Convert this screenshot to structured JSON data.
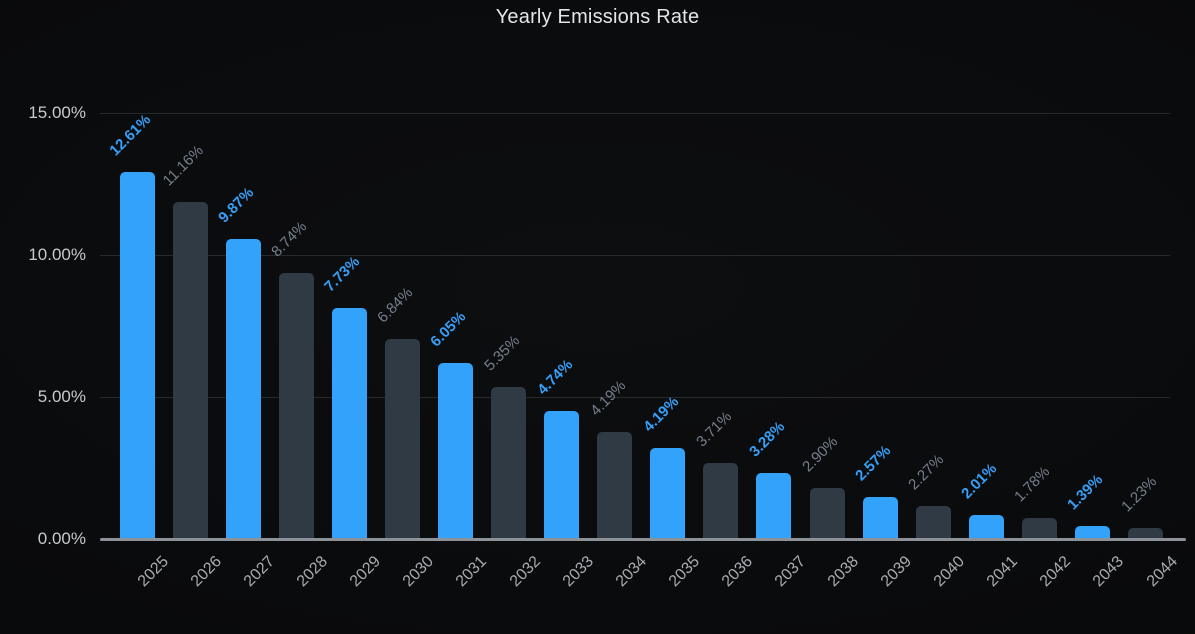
{
  "title": "Yearly Emissions Rate",
  "colors": {
    "background": "#0a0b0c",
    "bar_highlight": "#33a2fa",
    "bar_normal": "#2f3a45",
    "label_highlight": "#379ff7",
    "label_normal": "#76808d",
    "axis_tick_text": "#c7cacd",
    "x_tick_text": "#a9adb2",
    "gridline": "#26292d",
    "baseline": "#8d9298",
    "title_text": "#e3e5e7"
  },
  "chart_data": {
    "type": "bar",
    "title": "Yearly Emissions Rate",
    "xlabel": "",
    "ylabel": "",
    "categories": [
      "2025",
      "2026",
      "2027",
      "2028",
      "2029",
      "2030",
      "2031",
      "2032",
      "2033",
      "2034",
      "2035",
      "2036",
      "2037",
      "2038",
      "2039",
      "2040",
      "2041",
      "2042",
      "2043",
      "2044"
    ],
    "values": [
      12.61,
      11.16,
      9.87,
      8.74,
      7.73,
      6.84,
      6.05,
      5.35,
      4.74,
      4.19,
      4.19,
      3.71,
      3.28,
      2.9,
      2.57,
      2.27,
      2.01,
      1.78,
      1.39,
      1.23
    ],
    "data_labels": [
      "12.61%",
      "11.16%",
      "9.87%",
      "8.74%",
      "7.73%",
      "6.84%",
      "6.05%",
      "5.35%",
      "4.74%",
      "4.19%",
      "4.19%",
      "3.71%",
      "3.28%",
      "2.90%",
      "2.57%",
      "2.27%",
      "2.01%",
      "1.78%",
      "1.39%",
      "1.23%"
    ],
    "bar_visual_heights_pct": [
      12.92,
      11.87,
      10.56,
      9.37,
      8.13,
      7.04,
      6.2,
      5.35,
      4.51,
      3.77,
      3.2,
      2.68,
      2.32,
      1.8,
      1.48,
      1.16,
      0.85,
      0.74,
      0.46,
      0.39
    ],
    "highlighted_years": [
      "2025",
      "2027",
      "2029",
      "2031",
      "2033",
      "2035",
      "2037",
      "2039",
      "2041",
      "2043"
    ],
    "y_ticks": [
      {
        "label": "15.00%",
        "value": 15
      },
      {
        "label": "10.00%",
        "value": 10
      },
      {
        "label": "5.00%",
        "value": 5
      },
      {
        "label": "0.00%",
        "value": 0
      }
    ],
    "ylim": [
      0,
      15
    ],
    "grid": true,
    "legend": false,
    "data_label_rotation_deg": -45,
    "x_tick_rotation_deg": -45
  }
}
